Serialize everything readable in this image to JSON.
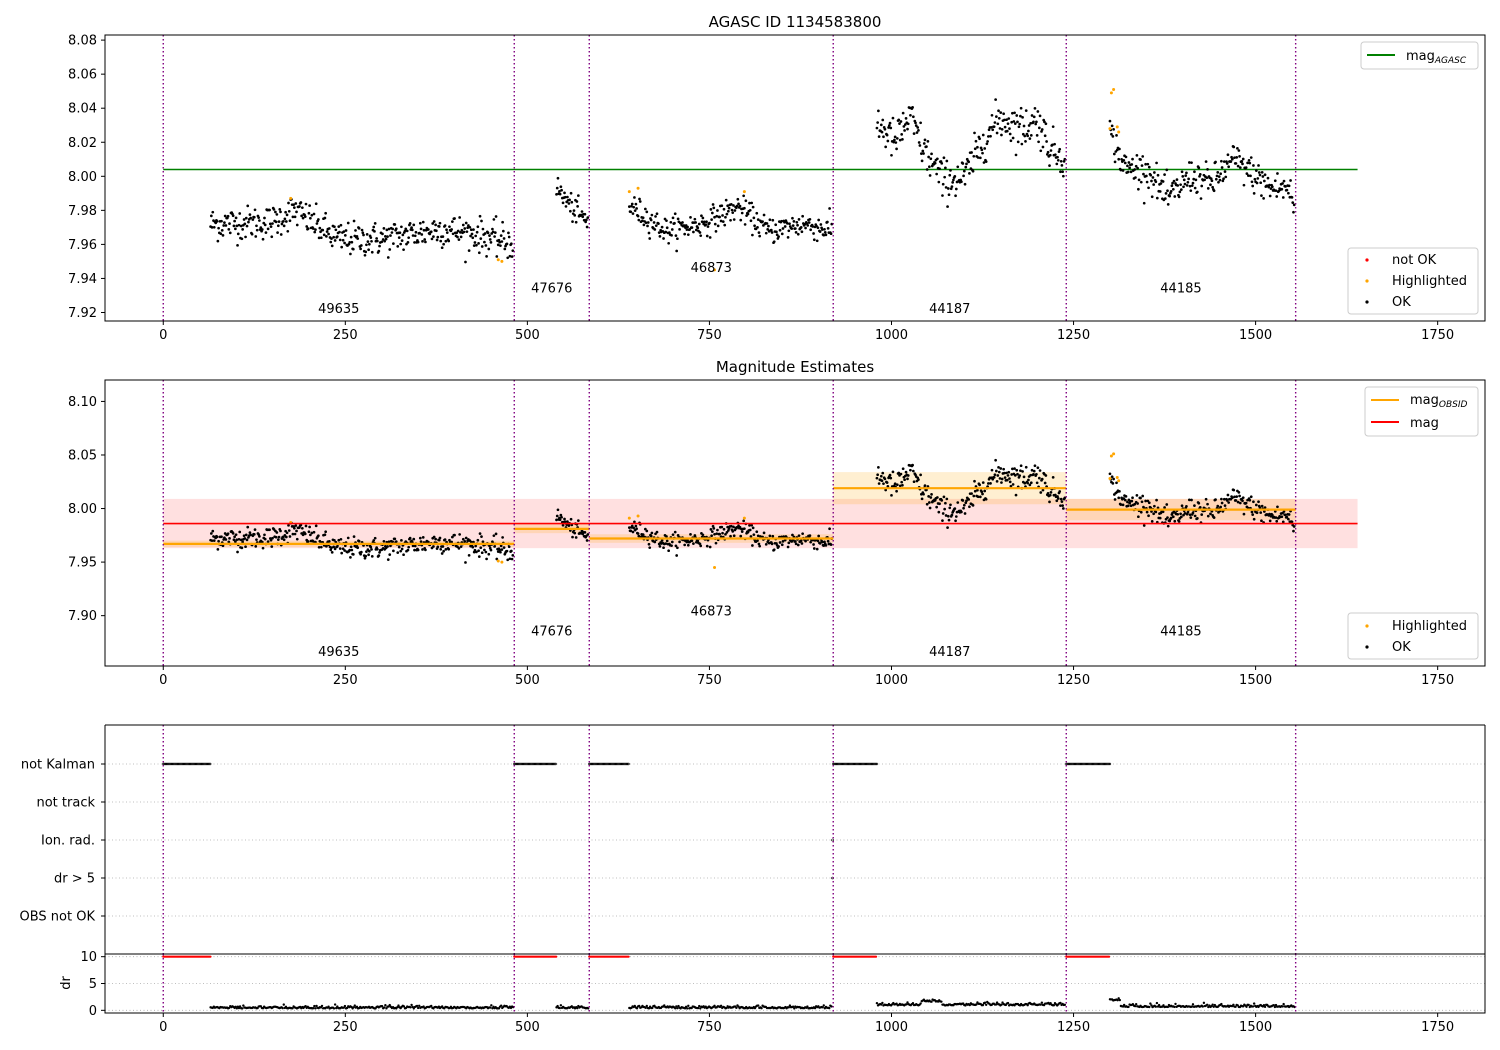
{
  "chart_data": [
    {
      "type": "scatter",
      "title": "AGASC ID 1134583800",
      "ylim": [
        7.915,
        8.083
      ],
      "yticks": [
        "7.92",
        "7.94",
        "7.96",
        "7.98",
        "8.00",
        "8.02",
        "8.04",
        "8.06",
        "8.08"
      ],
      "xlim": [
        -80,
        1815
      ],
      "xticks": [
        "0",
        "250",
        "500",
        "750",
        "1000",
        "1250",
        "1500",
        "1750"
      ],
      "legend_top": {
        "entries": [
          {
            "label": "mag",
            "sub": "AGASC",
            "color": "#008000"
          }
        ],
        "placement": "top-right"
      },
      "legend_bottom": {
        "entries": [
          {
            "label": "not OK",
            "color": "#ff0000"
          },
          {
            "label": "Highlighted",
            "color": "#ffa500"
          },
          {
            "label": "OK",
            "color": "#000000"
          }
        ],
        "placement": "lower-right"
      },
      "reference_line": {
        "value": 8.004,
        "x_range": [
          0,
          1640
        ],
        "color": "#008000"
      },
      "grid": false
    },
    {
      "type": "scatter",
      "title": "Magnitude Estimates",
      "ylim": [
        7.853,
        8.12
      ],
      "yticks": [
        "7.90",
        "7.95",
        "8.00",
        "8.05",
        "8.10"
      ],
      "xlim": [
        -80,
        1815
      ],
      "xticks": [
        "0",
        "250",
        "500",
        "750",
        "1000",
        "1250",
        "1500",
        "1750"
      ],
      "legend_top": {
        "entries": [
          {
            "label": "mag",
            "sub": "OBSID",
            "color": "#ffa500"
          },
          {
            "label": "mag",
            "color": "#ff0000"
          }
        ],
        "placement": "top-right"
      },
      "legend_bottom": {
        "entries": [
          {
            "label": "Highlighted",
            "color": "#ffa500"
          },
          {
            "label": "OK",
            "color": "#000000"
          }
        ],
        "placement": "lower-right"
      },
      "overall_mag": {
        "value": 7.986,
        "band": [
          7.963,
          8.009
        ],
        "x_range": [
          0,
          1640
        ]
      },
      "grid": false
    },
    {
      "type": "scatter",
      "flags": [
        "not Kalman",
        "not track",
        "Ion. rad.",
        "dr > 5",
        "OBS not OK"
      ],
      "kalman_gaps": [
        [
          0,
          65
        ],
        [
          482,
          540
        ],
        [
          585,
          640
        ],
        [
          920,
          980
        ],
        [
          1240,
          1300
        ]
      ],
      "xlim": [
        -80,
        1815
      ],
      "xticks": [
        "0",
        "250",
        "500",
        "750",
        "1000",
        "1250",
        "1500",
        "1750"
      ]
    },
    {
      "type": "scatter",
      "ylabel": "dr",
      "ylim": [
        -0.5,
        10.5
      ],
      "yticks": [
        "0",
        "5",
        "10"
      ],
      "xlim": [
        -80,
        1815
      ],
      "xticks": [
        "0",
        "250",
        "500",
        "750",
        "1000",
        "1250",
        "1500",
        "1750"
      ],
      "clip_value": 10
    }
  ],
  "observations": [
    {
      "obsid": "49635",
      "start": 0,
      "end": 482,
      "data_start": 65,
      "mag": 7.967,
      "level": 7.966,
      "std": 0.009,
      "trend": [
        [
          65,
          7.972
        ],
        [
          150,
          7.973
        ],
        [
          180,
          7.98
        ],
        [
          240,
          7.963
        ],
        [
          300,
          7.963
        ],
        [
          380,
          7.969
        ],
        [
          430,
          7.966
        ],
        [
          482,
          7.96
        ]
      ],
      "label_y": 7.922,
      "label_y2": 7.866,
      "obs_band": 0.003,
      "hl": [
        [
          175,
          7.987
        ],
        [
          460,
          7.951
        ],
        [
          465,
          7.95
        ]
      ]
    },
    {
      "obsid": "47676",
      "start": 482,
      "end": 585,
      "data_start": 540,
      "mag": 7.981,
      "level": 7.978,
      "std": 0.007,
      "trend": [
        [
          540,
          7.993
        ],
        [
          560,
          7.982
        ],
        [
          575,
          7.976
        ],
        [
          585,
          7.972
        ]
      ],
      "label_y": 7.934,
      "label_y2": 7.885,
      "obs_band": 0.004,
      "hl": []
    },
    {
      "obsid": "46873",
      "start": 585,
      "end": 920,
      "data_start": 640,
      "mag": 7.972,
      "level": 7.971,
      "std": 0.007,
      "trend": [
        [
          640,
          7.983
        ],
        [
          690,
          7.968
        ],
        [
          740,
          7.972
        ],
        [
          790,
          7.982
        ],
        [
          830,
          7.968
        ],
        [
          880,
          7.972
        ],
        [
          920,
          7.968
        ]
      ],
      "label_y": 7.946,
      "label_y2": 7.904,
      "obs_band": 0.004,
      "hl": [
        [
          640,
          7.991
        ],
        [
          652,
          7.993
        ],
        [
          798,
          7.991
        ],
        [
          757,
          7.945
        ]
      ]
    },
    {
      "obsid": "44187",
      "start": 920,
      "end": 1240,
      "data_start": 980,
      "mag": 8.019,
      "level": 8.018,
      "std": 0.011,
      "trend": [
        [
          980,
          8.032
        ],
        [
          1005,
          8.02
        ],
        [
          1025,
          8.035
        ],
        [
          1045,
          8.015
        ],
        [
          1070,
          7.998
        ],
        [
          1100,
          7.999
        ],
        [
          1130,
          8.024
        ],
        [
          1150,
          8.034
        ],
        [
          1180,
          8.028
        ],
        [
          1200,
          8.033
        ],
        [
          1220,
          8.015
        ],
        [
          1240,
          8.012
        ]
      ],
      "label_y": 7.922,
      "label_y2": 7.866,
      "obs_band": 0.015,
      "hl": []
    },
    {
      "obsid": "44185",
      "start": 1240,
      "end": 1555,
      "data_start": 1300,
      "mag": 7.999,
      "level": 7.998,
      "std": 0.009,
      "trend": [
        [
          1300,
          8.026
        ],
        [
          1320,
          8.005
        ],
        [
          1350,
          8.004
        ],
        [
          1380,
          7.987
        ],
        [
          1410,
          8.0
        ],
        [
          1440,
          7.996
        ],
        [
          1470,
          8.01
        ],
        [
          1490,
          8.003
        ],
        [
          1520,
          7.993
        ],
        [
          1545,
          7.993
        ],
        [
          1555,
          7.98
        ]
      ],
      "label_y": 7.934,
      "label_y2": 7.885,
      "obs_band": 0.01,
      "hl": [
        [
          1302,
          8.049
        ],
        [
          1305,
          8.051
        ],
        [
          1300,
          8.028
        ],
        [
          1310,
          8.029
        ],
        [
          1312,
          8.026
        ]
      ]
    }
  ]
}
